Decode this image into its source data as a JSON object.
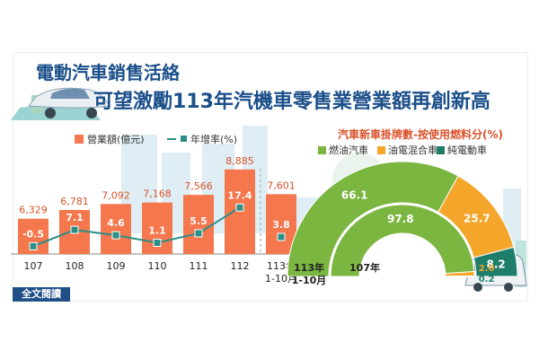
{
  "header": {
    "title_line1": "電動汽車銷售活絡",
    "title_line2": "可望激勵113年汽機車零售業營業額再創新高"
  },
  "footer": {
    "read_more": "全文閱讀"
  },
  "colors": {
    "bar": "#f5774e",
    "line": "#2a8f86",
    "title": "#1b4f8a",
    "fuel": "#7bb640",
    "hybrid": "#f4a62a",
    "electric": "#1e7e6a",
    "right_title": "#d9532b"
  },
  "chart_data": [
    {
      "type": "bar",
      "title": "",
      "legend": [
        "營業額(億元)",
        "年增率(%)"
      ],
      "legend_position": "top",
      "categories": [
        "107",
        "108",
        "109",
        "110",
        "111",
        "112",
        "113年\n1-10月"
      ],
      "series": [
        {
          "name": "營業額(億元)",
          "type": "bar",
          "values": [
            6329,
            6781,
            7092,
            7168,
            7566,
            8885,
            7601
          ],
          "labels": [
            "6,329",
            "6,781",
            "7,092",
            "7,168",
            "7,566",
            "8,885",
            "7,601"
          ]
        },
        {
          "name": "年增率(%)",
          "type": "line",
          "values": [
            -0.5,
            7.1,
            4.6,
            1.1,
            5.5,
            17.4,
            3.8
          ],
          "labels": [
            "-0.5",
            "7.1",
            "4.6",
            "1.1",
            "5.5",
            "17.4",
            "3.8"
          ]
        }
      ]
    },
    {
      "type": "pie",
      "subtype": "semi-donut",
      "title": "汽車新車掛牌數-按使用燃料分(%)",
      "legend": [
        "燃油汽車",
        "油電混合車",
        "純電動車"
      ],
      "legend_position": "top",
      "series": [
        {
          "name": "113年\n1-10月",
          "values": [
            66.1,
            25.7,
            8.2
          ],
          "labels": [
            "66.1",
            "25.7",
            "8.2"
          ]
        },
        {
          "name": "107年",
          "values": [
            97.8,
            2.0,
            0.2
          ],
          "labels": [
            "97.8",
            "2.0",
            "0.2"
          ]
        }
      ]
    }
  ]
}
